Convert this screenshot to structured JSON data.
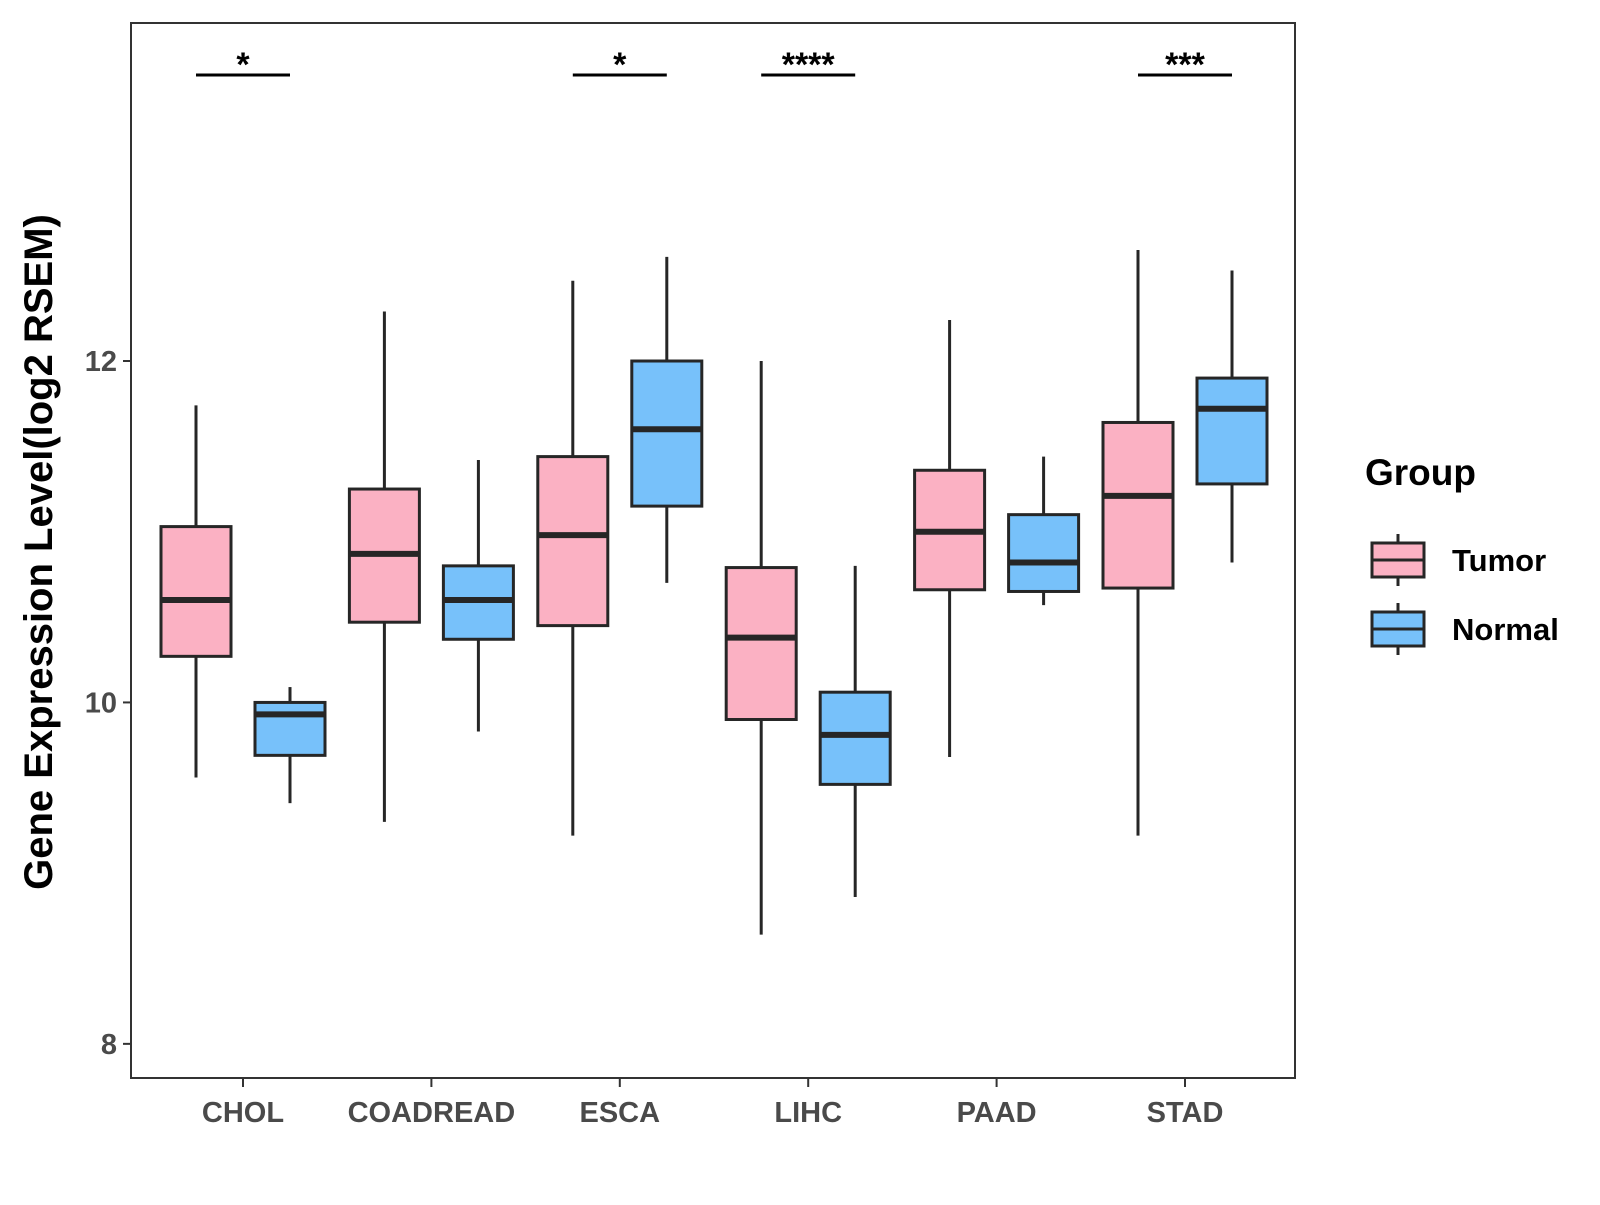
{
  "chart_data": {
    "type": "box",
    "ylabel": "Gene Expression Level(log2 RSEM)",
    "xlabel": "",
    "ylim": [
      7.8,
      13.98
    ],
    "y_ticks": [
      8,
      10,
      12
    ],
    "categories": [
      "CHOL",
      "COADREAD",
      "ESCA",
      "LIHC",
      "PAAD",
      "STAD"
    ],
    "legend": {
      "title": "Group",
      "placement": "right"
    },
    "series": [
      {
        "name": "Tumor",
        "color": "#FBB1C3",
        "boxes": [
          {
            "whisker_low": 9.56,
            "q1": 10.27,
            "median": 10.6,
            "q3": 11.03,
            "whisker_high": 11.74
          },
          {
            "whisker_low": 9.3,
            "q1": 10.47,
            "median": 10.87,
            "q3": 11.25,
            "whisker_high": 12.29
          },
          {
            "whisker_low": 9.22,
            "q1": 10.45,
            "median": 10.98,
            "q3": 11.44,
            "whisker_high": 12.47
          },
          {
            "whisker_low": 8.64,
            "q1": 9.9,
            "median": 10.38,
            "q3": 10.79,
            "whisker_high": 12.0
          },
          {
            "whisker_low": 9.68,
            "q1": 10.66,
            "median": 11.0,
            "q3": 11.36,
            "whisker_high": 12.24
          },
          {
            "whisker_low": 9.22,
            "q1": 10.67,
            "median": 11.21,
            "q3": 11.64,
            "whisker_high": 12.65
          }
        ]
      },
      {
        "name": "Normal",
        "color": "#77C1FA",
        "boxes": [
          {
            "whisker_low": 9.41,
            "q1": 9.69,
            "median": 9.93,
            "q3": 10.0,
            "whisker_high": 10.09
          },
          {
            "whisker_low": 9.83,
            "q1": 10.37,
            "median": 10.6,
            "q3": 10.8,
            "whisker_high": 11.42
          },
          {
            "whisker_low": 10.7,
            "q1": 11.15,
            "median": 11.6,
            "q3": 12.0,
            "whisker_high": 12.61
          },
          {
            "whisker_low": 8.86,
            "q1": 9.52,
            "median": 9.81,
            "q3": 10.06,
            "whisker_high": 10.8
          },
          {
            "whisker_low": 10.57,
            "q1": 10.65,
            "median": 10.82,
            "q3": 11.1,
            "whisker_high": 11.44
          },
          {
            "whisker_low": 10.82,
            "q1": 11.28,
            "median": 11.72,
            "q3": 11.9,
            "whisker_high": 12.53
          }
        ]
      }
    ],
    "significance": [
      {
        "category": "CHOL",
        "label": "*"
      },
      {
        "category": "ESCA",
        "label": "*"
      },
      {
        "category": "LIHC",
        "label": "****"
      },
      {
        "category": "STAD",
        "label": "***"
      }
    ]
  }
}
